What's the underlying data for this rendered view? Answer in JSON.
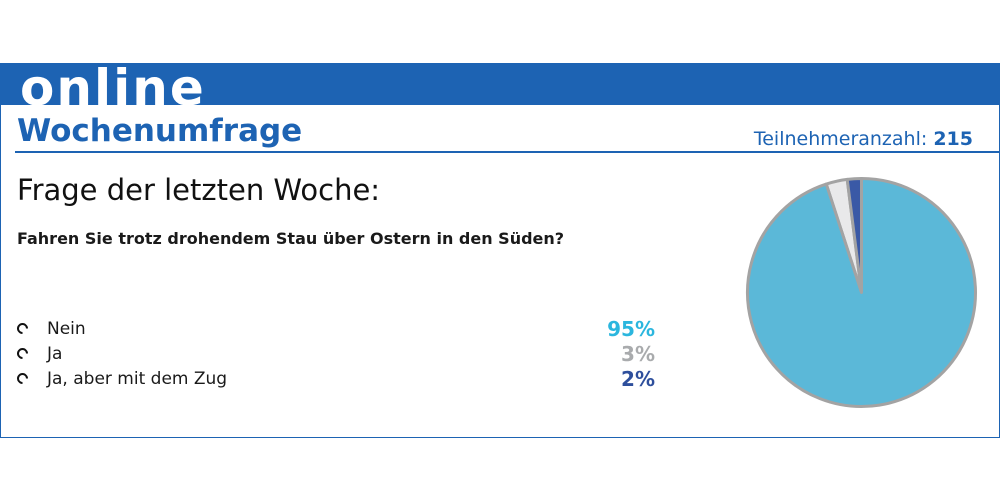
{
  "header": {
    "banner_word": "online",
    "poll_title": "Wochenumfrage",
    "participants_label": "Teilnehmeranzahl:",
    "participants_count": "215"
  },
  "question": {
    "heading": "Frage der letzten Woche:",
    "text": "Fahren Sie trotz drohendem Stau über Ostern in den Süden?"
  },
  "answers": [
    {
      "label": "Nein",
      "percent": "95%",
      "color": "#2bb6de"
    },
    {
      "label": "Ja",
      "percent": "3%",
      "color": "#a9abad"
    },
    {
      "label": "Ja, aber mit dem Zug",
      "percent": "2%",
      "color": "#2e4f9c"
    }
  ],
  "chart_data": {
    "type": "pie",
    "categories": [
      "Nein",
      "Ja",
      "Ja, aber mit dem Zug"
    ],
    "values": [
      95,
      3,
      2
    ],
    "colors": [
      "#5bb8d8",
      "#e9e9ea",
      "#3a59a6"
    ],
    "outline_color": "#a3a3a3"
  }
}
